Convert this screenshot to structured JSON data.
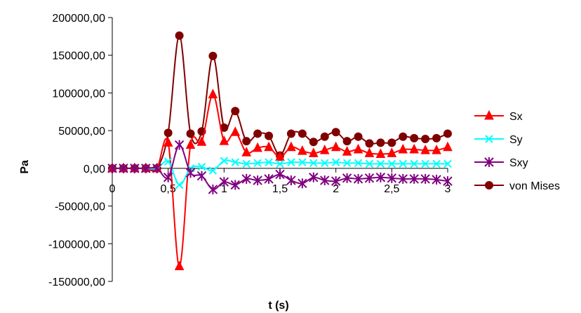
{
  "chart_data": {
    "type": "line",
    "title": "",
    "xlabel": "t (s)",
    "ylabel": "Pa",
    "xlim": [
      0,
      3
    ],
    "ylim": [
      -150000,
      200000
    ],
    "x_ticks": [
      {
        "value": 0,
        "label": "0"
      },
      {
        "value": 0.5,
        "label": "0,5"
      },
      {
        "value": 1,
        "label": "1"
      },
      {
        "value": 1.5,
        "label": "1,5"
      },
      {
        "value": 2,
        "label": "2"
      },
      {
        "value": 2.5,
        "label": "2,5"
      },
      {
        "value": 3,
        "label": "3"
      }
    ],
    "y_ticks": [
      {
        "value": 200000,
        "label": "200000,00"
      },
      {
        "value": 150000,
        "label": "150000,00"
      },
      {
        "value": 100000,
        "label": "100000,00"
      },
      {
        "value": 50000,
        "label": "50000,00"
      },
      {
        "value": 0,
        "label": "0,00"
      },
      {
        "value": -50000,
        "label": "-50000,00"
      },
      {
        "value": -100000,
        "label": "-100000,00"
      },
      {
        "value": -150000,
        "label": "-150000,00"
      }
    ],
    "grid": false,
    "legend_position": "right",
    "x": [
      0,
      0.1,
      0.2,
      0.3,
      0.4,
      0.5,
      0.6,
      0.7,
      0.8,
      0.9,
      1.0,
      1.1,
      1.2,
      1.3,
      1.4,
      1.5,
      1.6,
      1.7,
      1.8,
      1.9,
      2.0,
      2.1,
      2.2,
      2.3,
      2.4,
      2.5,
      2.6,
      2.7,
      2.8,
      2.9,
      3.0
    ],
    "series": [
      {
        "name": "Sx",
        "color": "#ff0000",
        "marker": "triangle",
        "values": [
          0,
          0,
          0,
          0,
          0,
          34000,
          -130000,
          31000,
          35000,
          98000,
          36000,
          48000,
          21000,
          27000,
          28000,
          15000,
          28000,
          23000,
          20000,
          24000,
          28000,
          22000,
          25000,
          20000,
          19000,
          20000,
          25000,
          25000,
          24000,
          24000,
          28000
        ]
      },
      {
        "name": "Sy",
        "color": "#00ffff",
        "marker": "x",
        "values": [
          0,
          0,
          0,
          0,
          0,
          9000,
          -22000,
          0,
          2000,
          -3000,
          10000,
          8000,
          6000,
          7000,
          8000,
          6000,
          8000,
          8000,
          7000,
          7000,
          8000,
          7000,
          7000,
          6000,
          6000,
          6000,
          6000,
          6000,
          6000,
          6000,
          6000
        ]
      },
      {
        "name": "Sxy",
        "color": "#800080",
        "marker": "star",
        "values": [
          0,
          0,
          0,
          0,
          0,
          -12000,
          31000,
          -6000,
          -10000,
          -28000,
          -18000,
          -22000,
          -14000,
          -16000,
          -14000,
          -8000,
          -16000,
          -20000,
          -12000,
          -16000,
          -17000,
          -13000,
          -14000,
          -13000,
          -12000,
          -13000,
          -14000,
          -14000,
          -14000,
          -15000,
          -17000
        ]
      },
      {
        "name": "von Mises",
        "color": "#800000",
        "marker": "circle",
        "values": [
          0,
          0,
          0,
          0,
          0,
          47000,
          176000,
          46000,
          49000,
          149000,
          54000,
          76000,
          36000,
          46000,
          43000,
          17000,
          46000,
          46000,
          35000,
          42000,
          48000,
          36000,
          42000,
          33000,
          34000,
          34000,
          42000,
          40000,
          39000,
          40000,
          46000
        ]
      }
    ]
  }
}
